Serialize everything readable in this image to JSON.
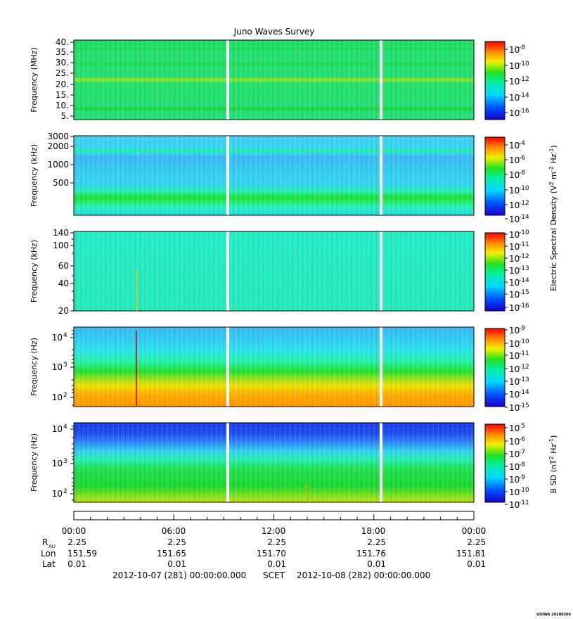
{
  "title": "Juno Waves Survey",
  "colorbar_label_efield": "Electric Spectral Density (V",
  "colorbar_label_efield_parts": [
    "Electric Spectral Density (V",
    "2",
    " m",
    "-2",
    " Hz",
    "-1",
    ")"
  ],
  "colorbar_label_bfield_parts": [
    "B SD (nT",
    "2",
    " Hz",
    "-1",
    ")"
  ],
  "panels": [
    {
      "ylabel": "Frequency (MHz)",
      "yticks": [
        "40.",
        "35.",
        "30.",
        "25.",
        "20.",
        "15.",
        "10.",
        "5."
      ],
      "colorbar_exponents": [
        "-8",
        "-10",
        "-12",
        "-14",
        "-16"
      ]
    },
    {
      "ylabel": "Frequency (kHz)",
      "yticks": [
        "3000",
        "2000",
        "1000",
        "500"
      ],
      "colorbar_exponents": [
        "-4",
        "-6",
        "-8",
        "-10",
        "-12",
        "-14"
      ]
    },
    {
      "ylabel": "Frequency (kHz)",
      "yticks": [
        "140",
        "100",
        "60",
        "40",
        "20"
      ],
      "colorbar_exponents": [
        "-10",
        "-11",
        "-12",
        "-13",
        "-14",
        "-15",
        "-16"
      ]
    },
    {
      "ylabel": "Frequency (Hz)",
      "yticks_base": [
        "10",
        "10",
        "10"
      ],
      "yticks_exp": [
        "4",
        "3",
        "2"
      ],
      "colorbar_exponents": [
        "-9",
        "-10",
        "-11",
        "-12",
        "-13",
        "-14",
        "-15"
      ]
    },
    {
      "ylabel": "Frequency (Hz)",
      "yticks_base": [
        "10",
        "10",
        "10"
      ],
      "yticks_exp": [
        "4",
        "3",
        "2"
      ],
      "colorbar_exponents": [
        "-5",
        "-6",
        "-7",
        "-8",
        "-9",
        "-10",
        "-11"
      ]
    }
  ],
  "time_axis": {
    "ticks": [
      "00:00",
      "06:00",
      "12:00",
      "18:00",
      "00:00"
    ],
    "r_label": "R",
    "r_sub": "AU",
    "r_values": [
      "2.25",
      "2.25",
      "2.25",
      "2.25",
      "2.25"
    ],
    "lon_label": "Lon",
    "lon_values": [
      "151.59",
      "151.65",
      "151.70",
      "151.76",
      "151.81"
    ],
    "lat_label": "Lat",
    "lat_values": [
      "0.01",
      "0.01",
      "0.01",
      "0.01",
      "0.01"
    ]
  },
  "footer": {
    "start": "2012-10-07 (281) 00:00:00.000",
    "scet": "SCET",
    "end": "2012-10-08 (282) 00:00:00.000"
  },
  "stamp": "UIOWA 20200306",
  "colors": {
    "green": "#19e619",
    "cyan_green": "#1ff0b4",
    "cyan": "#33dff0",
    "blue": "#1a7fff",
    "orange": "#ff9a00",
    "gap": "#ffffff"
  },
  "chart_data": {
    "type": "heatmap",
    "title": "Juno Waves Survey",
    "x": {
      "start": "2012-10-07 00:00",
      "end": "2012-10-08 00:00",
      "data_gaps_hours": [
        9.1,
        18.3
      ]
    },
    "panels": [
      {
        "ylabel": "Frequency (MHz)",
        "ylim": [
          3,
          41
        ],
        "scale": "linear",
        "colorbar_range_exp": [
          -17,
          -7
        ]
      },
      {
        "ylabel": "Frequency (kHz)",
        "ylim": [
          150,
          3000
        ],
        "scale": "log",
        "colorbar_range_exp": [
          -14,
          -4
        ]
      },
      {
        "ylabel": "Frequency (kHz)",
        "ylim": [
          20,
          140
        ],
        "scale": "log",
        "colorbar_range_exp": [
          -16,
          -10
        ]
      },
      {
        "ylabel": "Frequency (Hz)",
        "ylim": [
          60,
          20000
        ],
        "scale": "log",
        "colorbar_range_exp": [
          -15,
          -9
        ]
      },
      {
        "ylabel": "Frequency (Hz)",
        "ylim": [
          50,
          20000
        ],
        "scale": "log",
        "colorbar_range_exp": [
          -11,
          -4.5
        ]
      }
    ]
  }
}
